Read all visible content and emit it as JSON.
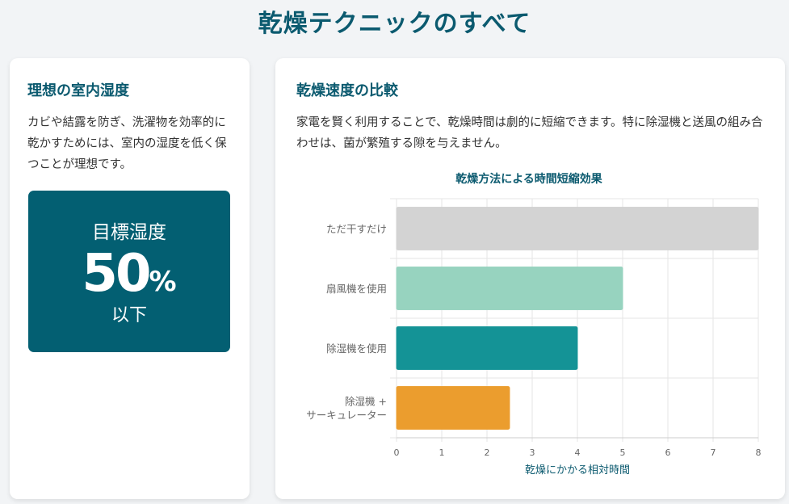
{
  "page": {
    "title": "乾燥テクニックのすべて"
  },
  "left_card": {
    "title": "理想の室内湿度",
    "description": "カビや結露を防ぎ、洗濯物を効率的に乾かすためには、室内の湿度を低く保つことが理想です。",
    "target": {
      "label": "目標湿度",
      "value": "50",
      "unit": "%",
      "suffix": "以下"
    },
    "colors": {
      "target_bg": "#035f72"
    }
  },
  "right_card": {
    "title": "乾燥速度の比較",
    "description": "家電を賢く利用することで、乾燥時間は劇的に短縮できます。特に除湿機と送風の組み合わせは、菌が繁殖する隙を与えません。"
  },
  "chart_data": {
    "type": "bar",
    "orientation": "horizontal",
    "title": "乾燥方法による時間短縮効果",
    "xlabel": "乾燥にかかる相対時間",
    "ylabel": "",
    "categories": [
      "ただ干すだけ",
      "扇風機を使用",
      "除湿機を使用",
      "除湿機 + サーキュレーター"
    ],
    "category_lines": [
      [
        "ただ干すだけ"
      ],
      [
        "扇風機を使用"
      ],
      [
        "除湿機を使用"
      ],
      [
        "除湿機 +",
        "サーキュレーター"
      ]
    ],
    "values": [
      8,
      5,
      4,
      2.5
    ],
    "colors": [
      "#d3d3d3",
      "#97d3bf",
      "#149396",
      "#eb9d2e"
    ],
    "xlim": [
      0,
      8
    ],
    "xticks": [
      0,
      1,
      2,
      3,
      4,
      5,
      6,
      7,
      8
    ],
    "grid": true,
    "legend": "none"
  }
}
